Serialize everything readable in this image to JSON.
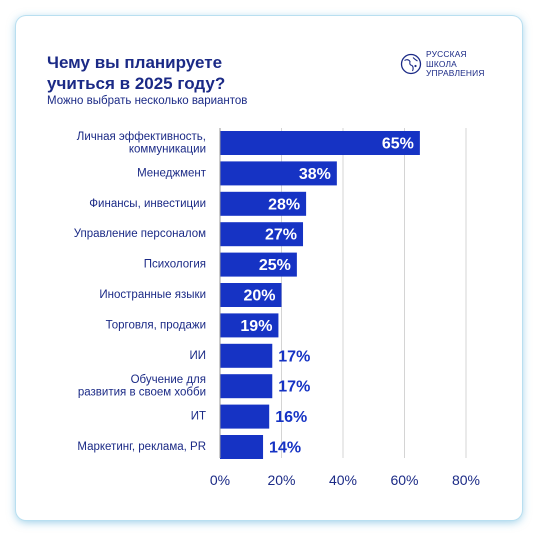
{
  "header": {
    "title": "Чему вы планируете\nучиться в 2025 году?",
    "subtitle": "Можно выбрать несколько вариантов"
  },
  "logo": {
    "icon": "globe-emblem-icon",
    "lines": [
      "РУССКАЯ",
      "ШКОЛА",
      "УПРАВЛЕНИЯ"
    ]
  },
  "colors": {
    "bar": "#1633c4",
    "text": "#1b2a86",
    "grid": "#d4d4d4"
  },
  "chart_data": {
    "type": "bar",
    "orientation": "horizontal",
    "categories": [
      "Личная эффективность,\nкоммуникации",
      "Менеджмент",
      "Финансы, инвестиции",
      "Управление персоналом",
      "Психология",
      "Иностранные языки",
      "Торговля, продажи",
      "ИИ",
      "Обучение для\nразвития в своем хобби",
      "ИТ",
      "Маркетинг, реклама, PR"
    ],
    "values": [
      65,
      38,
      28,
      27,
      25,
      20,
      19,
      17,
      17,
      16,
      14
    ],
    "data_labels": [
      "65%",
      "38%",
      "28%",
      "27%",
      "25%",
      "20%",
      "19%",
      "17%",
      "17%",
      "16%",
      "14%"
    ],
    "x_ticks": [
      0,
      20,
      40,
      60,
      80
    ],
    "x_tick_labels": [
      "0%",
      "20%",
      "40%",
      "60%",
      "80%"
    ],
    "xlim": [
      0,
      80
    ],
    "grid": "vertical",
    "legend": "none"
  }
}
